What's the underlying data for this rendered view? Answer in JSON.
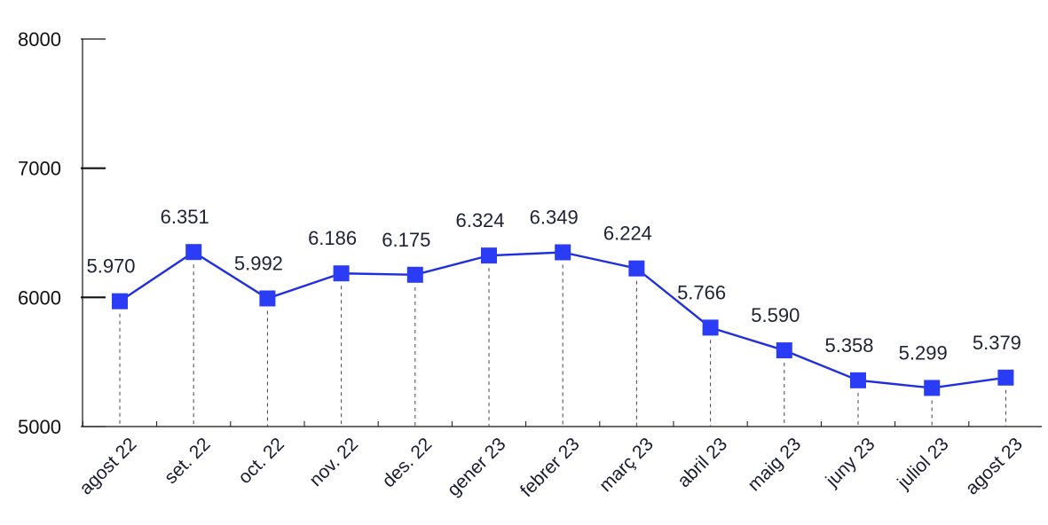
{
  "chart_data": {
    "type": "line",
    "categories": [
      "agost 22",
      "set. 22",
      "oct. 22",
      "nov. 22",
      "des. 22",
      "gener 23",
      "febrer 23",
      "març 23",
      "abril 23",
      "maig 23",
      "juny 23",
      "juliol 23",
      "agost 23"
    ],
    "values": [
      5970,
      6351,
      5992,
      6186,
      6175,
      6324,
      6349,
      6224,
      5766,
      5590,
      5358,
      5299,
      5379
    ],
    "value_labels": [
      "5.970",
      "6.351",
      "5.992",
      "6.186",
      "6.175",
      "6.324",
      "6.349",
      "6.224",
      "5.766",
      "5.590",
      "5.358",
      "5.299",
      "5.379"
    ],
    "ylim": [
      5000,
      8000
    ],
    "yticks": [
      5000,
      6000,
      7000,
      8000
    ],
    "ytick_labels": [
      "5000",
      "6000",
      "7000",
      "8000"
    ],
    "title": "",
    "xlabel": "",
    "ylabel": "",
    "colors": {
      "line": "#1f2fe0",
      "marker": "#2a3cf5",
      "axis": "#111111",
      "drop_line": "#444444"
    },
    "grid": false,
    "marker": "square",
    "drop_lines": true
  }
}
